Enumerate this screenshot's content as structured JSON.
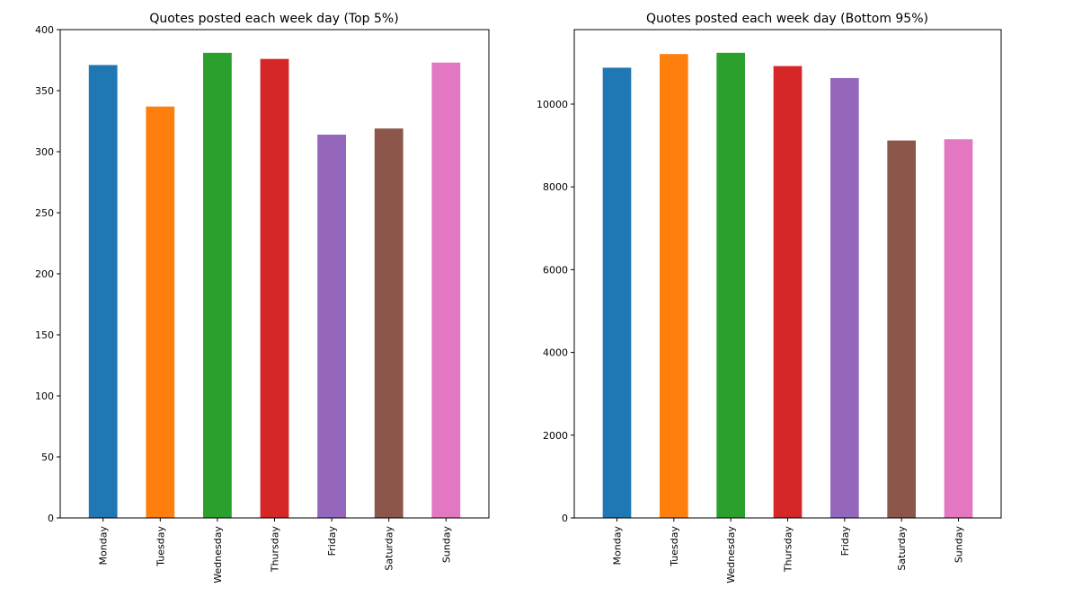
{
  "chart_data": [
    {
      "type": "bar",
      "title": "Quotes posted each week day (Top 5%)",
      "xlabel": "",
      "ylabel": "",
      "categories": [
        "Monday",
        "Tuesday",
        "Wednesday",
        "Thursday",
        "Friday",
        "Saturday",
        "Sunday"
      ],
      "values": [
        371,
        337,
        381,
        376,
        314,
        319,
        373
      ],
      "ylim": [
        0,
        400
      ],
      "yticks": [
        0,
        50,
        100,
        150,
        200,
        250,
        300,
        350,
        400
      ],
      "ytick_labels": [
        "0",
        "50",
        "100",
        "150",
        "200",
        "250",
        "300",
        "350",
        "400"
      ],
      "grid": false,
      "legend": "none",
      "colors": [
        "#1f77b4",
        "#ff7f0e",
        "#2ca02c",
        "#d62728",
        "#9467bd",
        "#8c564b",
        "#e377c2"
      ]
    },
    {
      "type": "bar",
      "title": "Quotes posted each week day (Bottom 95%)",
      "xlabel": "",
      "ylabel": "",
      "categories": [
        "Monday",
        "Tuesday",
        "Wednesday",
        "Thursday",
        "Friday",
        "Saturday",
        "Sunday"
      ],
      "values": [
        10880,
        11210,
        11240,
        10920,
        10630,
        9120,
        9150
      ],
      "ylim": [
        0,
        11800
      ],
      "yticks": [
        0,
        2000,
        4000,
        6000,
        8000,
        10000
      ],
      "ytick_labels": [
        "0",
        "2000",
        "4000",
        "6000",
        "8000",
        "10000"
      ],
      "grid": false,
      "legend": "none",
      "colors": [
        "#1f77b4",
        "#ff7f0e",
        "#2ca02c",
        "#d62728",
        "#9467bd",
        "#8c564b",
        "#e377c2"
      ]
    }
  ]
}
